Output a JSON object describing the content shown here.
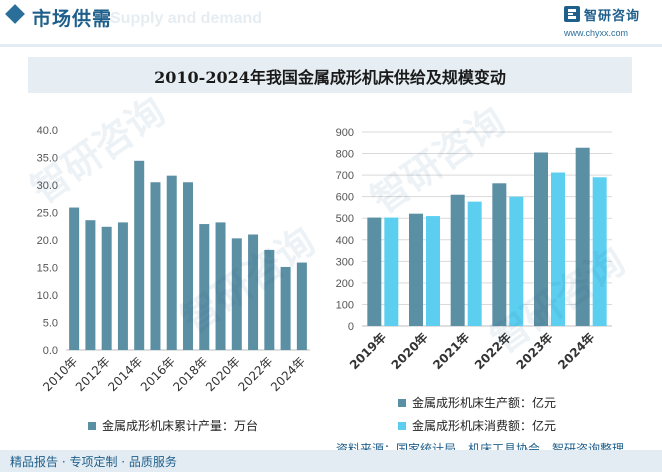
{
  "header": {
    "title": "市场供需",
    "bg_text": "Supply and demand",
    "logo_name": "智研咨询",
    "logo_url": "www.chyxx.com"
  },
  "title": "2010-2024年我国金属成形机床供给及规模变动",
  "colors": {
    "dark": "#5b8fa3",
    "light": "#5ccff0",
    "grid": "#d9d9d9",
    "brand": "#1f5f8b"
  },
  "watermark": "智研咨询",
  "chart_data": [
    {
      "type": "bar",
      "title": "",
      "categories": [
        "2010年",
        "2011年",
        "2012年",
        "2013年",
        "2014年",
        "2015年",
        "2016年",
        "2017年",
        "2018年",
        "2019年",
        "2020年",
        "2021年",
        "2022年",
        "2023年",
        "2024年"
      ],
      "tick_labels": [
        "2010年",
        "",
        "2012年",
        "",
        "2014年",
        "",
        "2016年",
        "",
        "2018年",
        "",
        "2020年",
        "",
        "2022年",
        "",
        "2024年"
      ],
      "series": [
        {
          "name": "金属成形机床累计产量：万台",
          "values": [
            25.9,
            23.6,
            22.4,
            23.2,
            34.4,
            30.5,
            31.7,
            30.5,
            22.9,
            23.2,
            20.3,
            21.0,
            18.2,
            15.1,
            15.9
          ]
        }
      ],
      "yticks": [
        "0.0",
        "5.0",
        "10.0",
        "15.0",
        "20.0",
        "25.0",
        "30.0",
        "35.0",
        "40.0"
      ],
      "ylim": [
        0,
        40
      ],
      "xlabel": "",
      "ylabel": "",
      "legend": "bottom"
    },
    {
      "type": "bar",
      "title": "",
      "categories": [
        "2019年",
        "2020年",
        "2021年",
        "2022年",
        "2023年",
        "2024年"
      ],
      "series": [
        {
          "name": "金属成形机床生产额：亿元",
          "values": [
            503,
            521,
            609,
            662,
            805,
            827
          ]
        },
        {
          "name": "金属成形机床消费额：亿元",
          "values": [
            503,
            510,
            577,
            600,
            712,
            690
          ]
        }
      ],
      "yticks": [
        "0",
        "100",
        "200",
        "300",
        "400",
        "500",
        "600",
        "700",
        "800",
        "900"
      ],
      "ylim": [
        0,
        900
      ],
      "xlabel": "",
      "ylabel": "",
      "legend": "bottom"
    }
  ],
  "source": "资料来源：国家统计局，机床工具协会，智研咨询整理",
  "footer": "精品报告 · 专项定制 · 品质服务"
}
